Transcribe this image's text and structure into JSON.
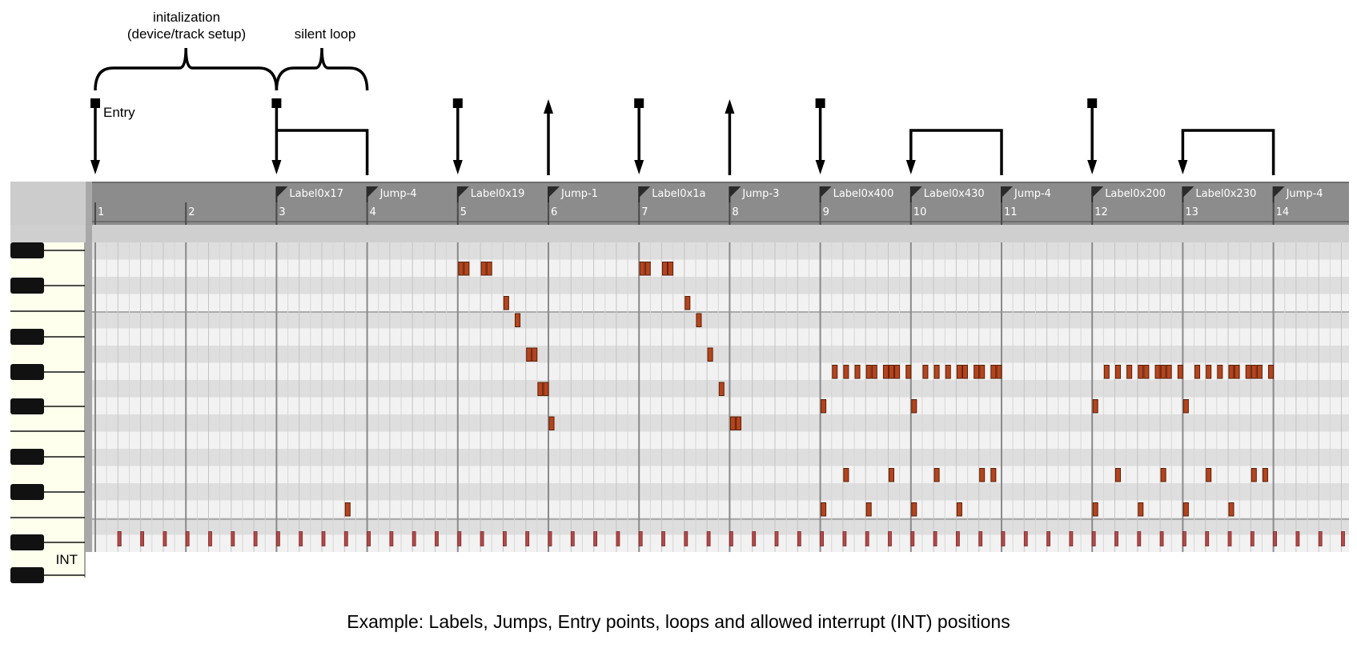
{
  "annotations": {
    "init_label_line1": "initalization",
    "init_label_line2": "(device/track setup)",
    "silent_loop_label": "silent loop",
    "entry_label": "Entry",
    "int_label": "INT"
  },
  "caption": "Example: Labels, Jumps, Entry points, loops and allowed interrupt (INT) positions",
  "ruler": {
    "bar_numbers": [
      "1",
      "2",
      "3",
      "4",
      "5",
      "6",
      "7",
      "8",
      "9",
      "10",
      "11",
      "12",
      "13",
      "14"
    ],
    "markers": [
      {
        "bar": 3,
        "text": "Label0x17",
        "kind": "label"
      },
      {
        "bar": 4,
        "text": "Jump-4",
        "kind": "jump"
      },
      {
        "bar": 5,
        "text": "Label0x19",
        "kind": "label"
      },
      {
        "bar": 6,
        "text": "Jump-1",
        "kind": "jump"
      },
      {
        "bar": 7,
        "text": "Label0x1a",
        "kind": "label"
      },
      {
        "bar": 8,
        "text": "Jump-3",
        "kind": "jump"
      },
      {
        "bar": 9,
        "text": "Label0x400",
        "kind": "label"
      },
      {
        "bar": 10,
        "text": "Label0x430",
        "kind": "label"
      },
      {
        "bar": 11,
        "text": "Jump-4",
        "kind": "jump"
      },
      {
        "bar": 12,
        "text": "Label0x200",
        "kind": "label"
      },
      {
        "bar": 13,
        "text": "Label0x230",
        "kind": "label"
      },
      {
        "bar": 14,
        "text": "Jump-4",
        "kind": "jump"
      }
    ]
  },
  "top_arrows": [
    {
      "bar": 1,
      "type": "entry-down"
    },
    {
      "bar": 3,
      "type": "entry-down"
    },
    {
      "bar": 5,
      "type": "entry-down"
    },
    {
      "bar": 6,
      "type": "jump-up"
    },
    {
      "bar": 7,
      "type": "entry-down"
    },
    {
      "bar": 8,
      "type": "jump-up"
    },
    {
      "bar": 9,
      "type": "entry-down"
    },
    {
      "bar": 12,
      "type": "entry-down"
    }
  ],
  "loops": [
    {
      "from_bar": 3,
      "to_bar": 4,
      "arrow": false
    },
    {
      "from_bar": 10,
      "to_bar": 11,
      "arrow": true
    },
    {
      "from_bar": 13,
      "to_bar": 14,
      "arrow": true
    }
  ],
  "braces": [
    {
      "from_bar": 1,
      "to_bar": 3
    },
    {
      "from_bar": 3,
      "to_bar": 4
    }
  ],
  "notes": [
    {
      "bar": 5,
      "beat": 0.0,
      "row": 1
    },
    {
      "bar": 5,
      "beat": 0.25,
      "row": 1
    },
    {
      "bar": 5,
      "beat": 1.0,
      "row": 1
    },
    {
      "bar": 5,
      "beat": 1.25,
      "row": 1
    },
    {
      "bar": 5,
      "beat": 2.0,
      "row": 3
    },
    {
      "bar": 5,
      "beat": 2.5,
      "row": 4
    },
    {
      "bar": 5,
      "beat": 3.0,
      "row": 6
    },
    {
      "bar": 5,
      "beat": 3.25,
      "row": 6
    },
    {
      "bar": 5,
      "beat": 3.5,
      "row": 8
    },
    {
      "bar": 5,
      "beat": 3.75,
      "row": 8
    },
    {
      "bar": 5,
      "beat": 4.0,
      "row": 10
    },
    {
      "bar": 7,
      "beat": 0.0,
      "row": 1
    },
    {
      "bar": 7,
      "beat": 0.25,
      "row": 1
    },
    {
      "bar": 7,
      "beat": 1.0,
      "row": 1
    },
    {
      "bar": 7,
      "beat": 1.25,
      "row": 1
    },
    {
      "bar": 7,
      "beat": 2.0,
      "row": 3
    },
    {
      "bar": 7,
      "beat": 2.5,
      "row": 4
    },
    {
      "bar": 7,
      "beat": 3.0,
      "row": 6
    },
    {
      "bar": 7,
      "beat": 3.5,
      "row": 8
    },
    {
      "bar": 7,
      "beat": 4.0,
      "row": 10
    },
    {
      "bar": 7,
      "beat": 4.25,
      "row": 10
    },
    {
      "bar": 9,
      "beat": 0.5,
      "row": 7
    },
    {
      "bar": 9,
      "beat": 1.0,
      "row": 7
    },
    {
      "bar": 9,
      "beat": 1.5,
      "row": 7
    },
    {
      "bar": 9,
      "beat": 2.0,
      "row": 7
    },
    {
      "bar": 9,
      "beat": 2.25,
      "row": 7
    },
    {
      "bar": 9,
      "beat": 2.75,
      "row": 7
    },
    {
      "bar": 9,
      "beat": 3.0,
      "row": 7
    },
    {
      "bar": 9,
      "beat": 3.25,
      "row": 7
    },
    {
      "bar": 9,
      "beat": 3.75,
      "row": 7
    },
    {
      "bar": 10,
      "beat": 0.5,
      "row": 7
    },
    {
      "bar": 10,
      "beat": 1.0,
      "row": 7
    },
    {
      "bar": 10,
      "beat": 1.5,
      "row": 7
    },
    {
      "bar": 10,
      "beat": 2.0,
      "row": 7
    },
    {
      "bar": 10,
      "beat": 2.25,
      "row": 7
    },
    {
      "bar": 10,
      "beat": 2.75,
      "row": 7
    },
    {
      "bar": 10,
      "beat": 3.0,
      "row": 7
    },
    {
      "bar": 10,
      "beat": 3.5,
      "row": 7
    },
    {
      "bar": 10,
      "beat": 3.75,
      "row": 7
    },
    {
      "bar": 9,
      "beat": 0.0,
      "row": 9
    },
    {
      "bar": 10,
      "beat": 0.0,
      "row": 9
    },
    {
      "bar": 9,
      "beat": 1.0,
      "row": 13
    },
    {
      "bar": 9,
      "beat": 3.0,
      "row": 13
    },
    {
      "bar": 10,
      "beat": 1.0,
      "row": 13
    },
    {
      "bar": 10,
      "beat": 3.0,
      "row": 13
    },
    {
      "bar": 10,
      "beat": 3.5,
      "row": 13
    },
    {
      "bar": 9,
      "beat": 0.0,
      "row": 15
    },
    {
      "bar": 9,
      "beat": 2.0,
      "row": 15
    },
    {
      "bar": 10,
      "beat": 0.0,
      "row": 15
    },
    {
      "bar": 10,
      "beat": 2.0,
      "row": 15
    },
    {
      "bar": 12,
      "beat": 0.5,
      "row": 7
    },
    {
      "bar": 12,
      "beat": 1.0,
      "row": 7
    },
    {
      "bar": 12,
      "beat": 1.5,
      "row": 7
    },
    {
      "bar": 12,
      "beat": 2.0,
      "row": 7
    },
    {
      "bar": 12,
      "beat": 2.25,
      "row": 7
    },
    {
      "bar": 12,
      "beat": 2.75,
      "row": 7
    },
    {
      "bar": 12,
      "beat": 3.0,
      "row": 7
    },
    {
      "bar": 12,
      "beat": 3.25,
      "row": 7
    },
    {
      "bar": 12,
      "beat": 3.75,
      "row": 7
    },
    {
      "bar": 13,
      "beat": 0.5,
      "row": 7
    },
    {
      "bar": 13,
      "beat": 1.0,
      "row": 7
    },
    {
      "bar": 13,
      "beat": 1.5,
      "row": 7
    },
    {
      "bar": 13,
      "beat": 2.0,
      "row": 7
    },
    {
      "bar": 13,
      "beat": 2.25,
      "row": 7
    },
    {
      "bar": 13,
      "beat": 2.75,
      "row": 7
    },
    {
      "bar": 13,
      "beat": 3.0,
      "row": 7
    },
    {
      "bar": 13,
      "beat": 3.25,
      "row": 7
    },
    {
      "bar": 13,
      "beat": 3.75,
      "row": 7
    },
    {
      "bar": 12,
      "beat": 0.0,
      "row": 9
    },
    {
      "bar": 13,
      "beat": 0.0,
      "row": 9
    },
    {
      "bar": 12,
      "beat": 1.0,
      "row": 13
    },
    {
      "bar": 12,
      "beat": 3.0,
      "row": 13
    },
    {
      "bar": 13,
      "beat": 1.0,
      "row": 13
    },
    {
      "bar": 13,
      "beat": 3.0,
      "row": 13
    },
    {
      "bar": 13,
      "beat": 3.5,
      "row": 13
    },
    {
      "bar": 12,
      "beat": 0.0,
      "row": 15
    },
    {
      "bar": 12,
      "beat": 2.0,
      "row": 15
    },
    {
      "bar": 13,
      "beat": 0.0,
      "row": 15
    },
    {
      "bar": 13,
      "beat": 2.0,
      "row": 15
    },
    {
      "bar": 3,
      "beat": 3.0,
      "row": 15
    }
  ],
  "colors": {
    "note_fill": "#b5441c",
    "note_stroke": "#5a1e08",
    "int_tick": "#b54848",
    "ruler_bg": "#8c8c8c",
    "key_bg": "#ffffee",
    "row_light": "#f2f2f2",
    "row_dark": "#dedede"
  }
}
